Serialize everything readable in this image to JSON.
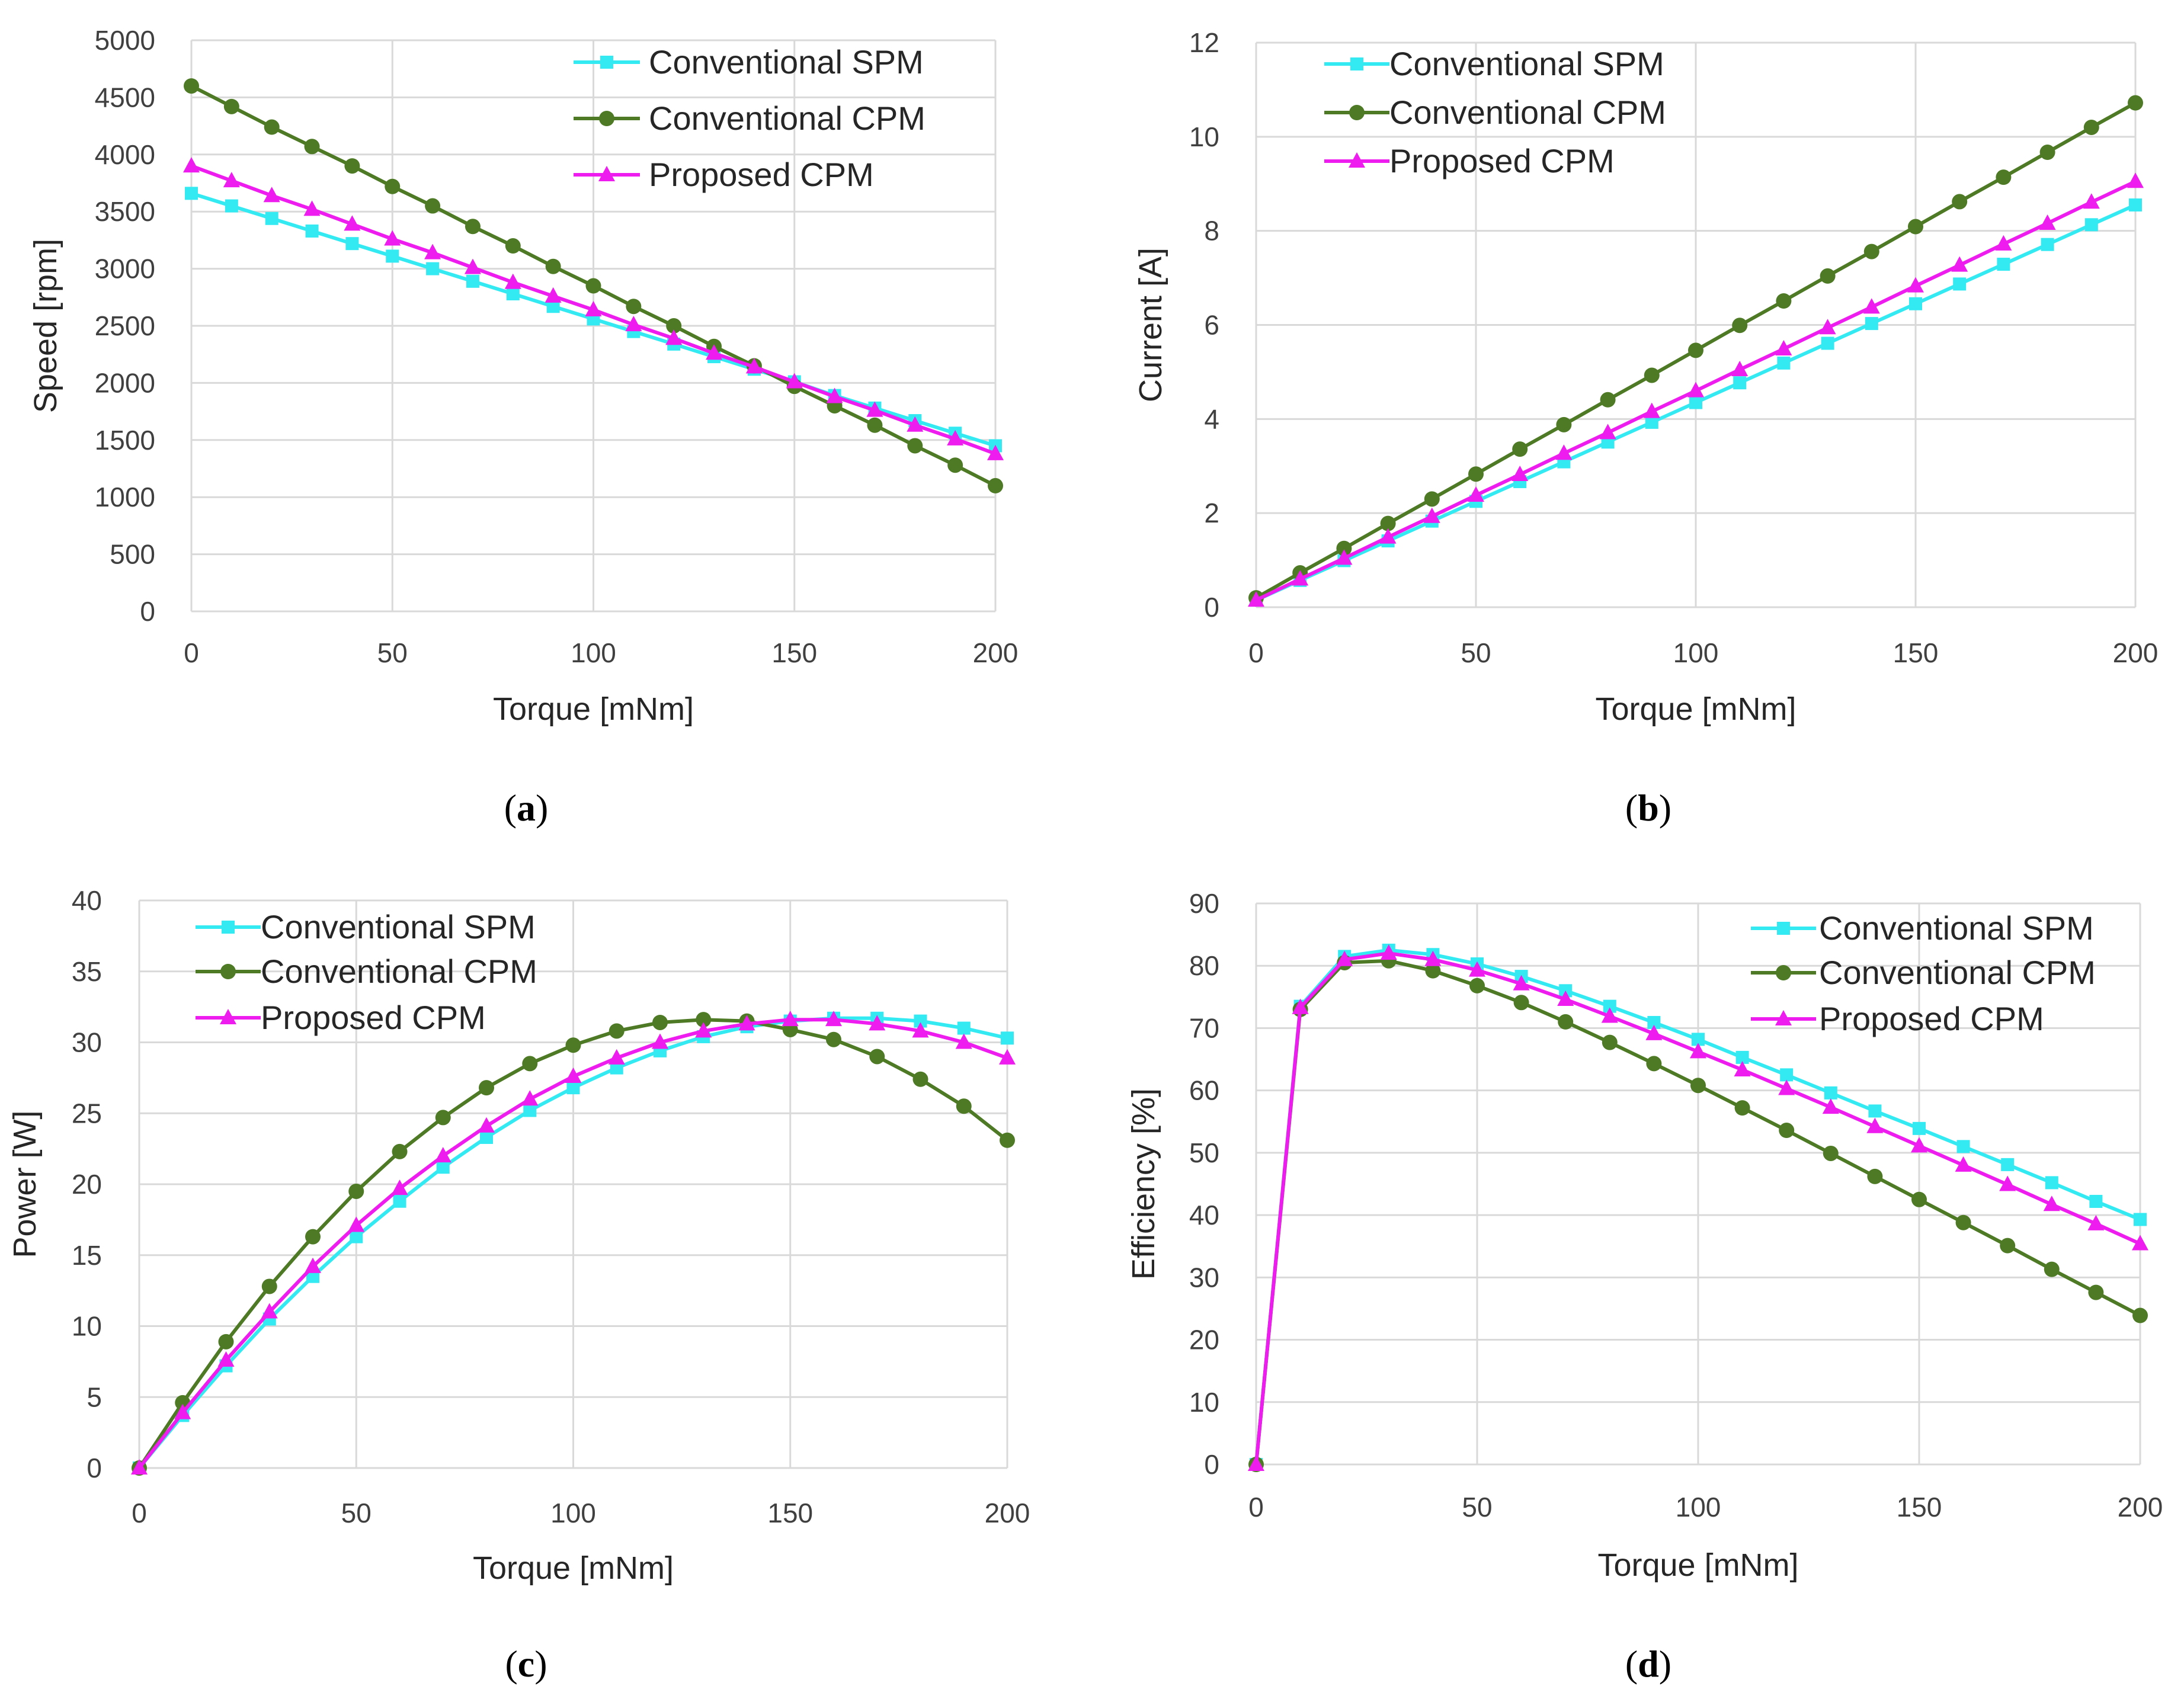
{
  "colors": {
    "spm": "#33eaf2",
    "cpm": "#4e7a26",
    "proposed": "#ee1cee",
    "grid": "#d9d9d9",
    "text": "#404040"
  },
  "chart_data": [
    {
      "id": "a",
      "type": "line",
      "panel_label": "a",
      "xlabel": "Torque [mNm]",
      "ylabel": "Speed [rpm]",
      "xlim": [
        0,
        200
      ],
      "ylim": [
        0,
        5000
      ],
      "xticks": [
        0,
        50,
        100,
        150,
        200
      ],
      "yticks": [
        0,
        500,
        1000,
        1500,
        2000,
        2500,
        3000,
        3500,
        4000,
        4500,
        5000
      ],
      "legend_position": "top-right",
      "x": [
        0,
        10,
        20,
        30,
        40,
        50,
        60,
        70,
        80,
        90,
        100,
        110,
        120,
        130,
        140,
        150,
        160,
        170,
        180,
        190,
        200
      ],
      "series": [
        {
          "name": "Conventional SPM",
          "marker": "square",
          "color_key": "spm",
          "values": [
            3660,
            3550,
            3440,
            3330,
            3220,
            3110,
            3000,
            2890,
            2780,
            2670,
            2560,
            2450,
            2340,
            2230,
            2120,
            2010,
            1890,
            1780,
            1670,
            1560,
            1450
          ]
        },
        {
          "name": "Conventional CPM",
          "marker": "circle",
          "color_key": "cpm",
          "values": [
            4600,
            4420,
            4240,
            4070,
            3900,
            3720,
            3550,
            3370,
            3200,
            3020,
            2850,
            2670,
            2500,
            2320,
            2150,
            1970,
            1800,
            1630,
            1450,
            1280,
            1100
          ]
        },
        {
          "name": "Proposed CPM",
          "marker": "triangle",
          "color_key": "proposed",
          "values": [
            3900,
            3770,
            3640,
            3520,
            3390,
            3260,
            3140,
            3010,
            2880,
            2760,
            2640,
            2510,
            2390,
            2260,
            2140,
            2010,
            1880,
            1760,
            1630,
            1510,
            1380
          ]
        }
      ]
    },
    {
      "id": "b",
      "type": "line",
      "panel_label": "b",
      "xlabel": "Torque [mNm]",
      "ylabel": "Current [A]",
      "xlim": [
        0,
        200
      ],
      "ylim": [
        0,
        12
      ],
      "xticks": [
        0,
        50,
        100,
        150,
        200
      ],
      "yticks": [
        0,
        2,
        4,
        6,
        8,
        10,
        12
      ],
      "legend_position": "top-left",
      "x": [
        0,
        10,
        20,
        30,
        40,
        50,
        60,
        70,
        80,
        90,
        100,
        110,
        120,
        130,
        140,
        150,
        160,
        170,
        180,
        190,
        200
      ],
      "series": [
        {
          "name": "Conventional SPM",
          "marker": "square",
          "color_key": "spm",
          "values": [
            0.15,
            0.57,
            0.99,
            1.41,
            1.83,
            2.25,
            2.67,
            3.09,
            3.51,
            3.93,
            4.35,
            4.77,
            5.19,
            5.61,
            6.03,
            6.45,
            6.87,
            7.29,
            7.71,
            8.13,
            8.55
          ]
        },
        {
          "name": "Conventional CPM",
          "marker": "circle",
          "color_key": "cpm",
          "values": [
            0.2,
            0.73,
            1.25,
            1.78,
            2.3,
            2.83,
            3.36,
            3.88,
            4.41,
            4.93,
            5.46,
            5.99,
            6.51,
            7.04,
            7.56,
            8.09,
            8.62,
            9.14,
            9.67,
            10.2,
            10.72
          ]
        },
        {
          "name": "Proposed CPM",
          "marker": "triangle",
          "color_key": "proposed",
          "values": [
            0.15,
            0.6,
            1.04,
            1.49,
            1.93,
            2.38,
            2.82,
            3.27,
            3.71,
            4.16,
            4.6,
            5.05,
            5.49,
            5.94,
            6.38,
            6.83,
            7.27,
            7.72,
            8.16,
            8.61,
            9.05
          ]
        }
      ]
    },
    {
      "id": "c",
      "type": "line",
      "panel_label": "c",
      "xlabel": "Torque [mNm]",
      "ylabel": "Power [W]",
      "xlim": [
        0,
        200
      ],
      "ylim": [
        0,
        40
      ],
      "xticks": [
        0,
        50,
        100,
        150,
        200
      ],
      "yticks": [
        0,
        5,
        10,
        15,
        20,
        25,
        30,
        35,
        40
      ],
      "legend_position": "top-left",
      "x": [
        0,
        10,
        20,
        30,
        40,
        50,
        60,
        70,
        80,
        90,
        100,
        110,
        120,
        130,
        140,
        150,
        160,
        170,
        180,
        190,
        200
      ],
      "series": [
        {
          "name": "Conventional SPM",
          "marker": "square",
          "color_key": "spm",
          "values": [
            0,
            3.7,
            7.2,
            10.5,
            13.5,
            16.3,
            18.8,
            21.2,
            23.3,
            25.2,
            26.8,
            28.2,
            29.4,
            30.4,
            31.1,
            31.5,
            31.7,
            31.7,
            31.5,
            31.0,
            30.3
          ]
        },
        {
          "name": "Conventional CPM",
          "marker": "circle",
          "color_key": "cpm",
          "values": [
            0,
            4.6,
            8.9,
            12.8,
            16.3,
            19.5,
            22.3,
            24.7,
            26.8,
            28.5,
            29.8,
            30.8,
            31.4,
            31.6,
            31.5,
            30.9,
            30.2,
            29.0,
            27.4,
            25.5,
            23.1
          ]
        },
        {
          "name": "Proposed CPM",
          "marker": "triangle",
          "color_key": "proposed",
          "values": [
            0,
            3.9,
            7.6,
            11.0,
            14.2,
            17.1,
            19.7,
            22.0,
            24.1,
            26.0,
            27.6,
            28.9,
            30.0,
            30.8,
            31.3,
            31.6,
            31.6,
            31.3,
            30.8,
            30.0,
            28.9
          ]
        }
      ]
    },
    {
      "id": "d",
      "type": "line",
      "panel_label": "d",
      "xlabel": "Torque [mNm]",
      "ylabel": "Efficiency [%]",
      "xlim": [
        0,
        200
      ],
      "ylim": [
        0,
        90
      ],
      "xticks": [
        0,
        50,
        100,
        150,
        200
      ],
      "yticks": [
        0,
        10,
        20,
        30,
        40,
        50,
        60,
        70,
        80,
        90
      ],
      "legend_position": "top-right",
      "x": [
        0,
        10,
        20,
        30,
        40,
        50,
        60,
        70,
        80,
        90,
        100,
        110,
        120,
        130,
        140,
        150,
        160,
        170,
        180,
        190,
        200
      ],
      "series": [
        {
          "name": "Conventional SPM",
          "marker": "square",
          "color_key": "spm",
          "values": [
            0,
            73.5,
            81.5,
            82.5,
            81.8,
            80.3,
            78.3,
            76.0,
            73.5,
            70.9,
            68.2,
            65.3,
            62.5,
            59.6,
            56.7,
            53.9,
            51.0,
            48.1,
            45.2,
            42.2,
            39.3
          ]
        },
        {
          "name": "Conventional CPM",
          "marker": "circle",
          "color_key": "cpm",
          "values": [
            0,
            73.0,
            80.5,
            80.8,
            79.2,
            76.8,
            74.1,
            71.0,
            67.7,
            64.3,
            60.8,
            57.2,
            53.6,
            49.9,
            46.2,
            42.5,
            38.8,
            35.1,
            31.3,
            27.6,
            23.9
          ]
        },
        {
          "name": "Proposed CPM",
          "marker": "triangle",
          "color_key": "proposed",
          "values": [
            0,
            73.3,
            81.0,
            82.0,
            81.0,
            79.3,
            77.1,
            74.6,
            71.9,
            69.1,
            66.2,
            63.3,
            60.3,
            57.3,
            54.2,
            51.1,
            48.0,
            44.9,
            41.7,
            38.6,
            35.4
          ]
        }
      ]
    }
  ]
}
